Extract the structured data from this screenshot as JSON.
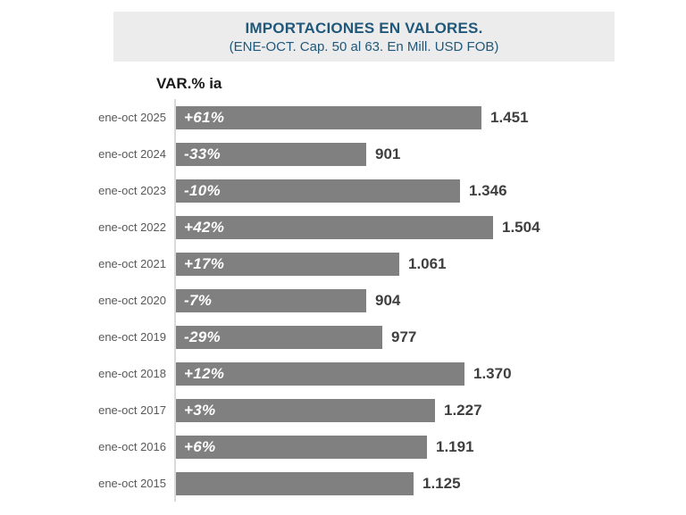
{
  "header": {
    "title": "IMPORTACIONES EN VALORES.",
    "subtitle": "(ENE-OCT. Cap. 50 al 63. En Mill. USD FOB)"
  },
  "axis_note": "VAR.% ia",
  "colors": {
    "title_blue": "#1F587A",
    "bar_gray": "#808080",
    "value_text": "#3F3F3F",
    "category_text": "#595959",
    "header_bg": "#ECECEC",
    "axis_line": "#D9D9D9"
  },
  "chart_data": {
    "type": "bar",
    "orientation": "horizontal",
    "title": "IMPORTACIONES EN VALORES.",
    "subtitle": "(ENE-OCT. Cap. 50 al 63. En Mill. USD FOB)",
    "annotation": "VAR.% ia",
    "categories": [
      "ene-oct 2025",
      "ene-oct 2024",
      "ene-oct 2023",
      "ene-oct 2022",
      "ene-oct 2021",
      "ene-oct 2020",
      "ene-oct 2019",
      "ene-oct 2018",
      "ene-oct 2017",
      "ene-oct 2016",
      "ene-oct 2015"
    ],
    "values": [
      1451,
      901,
      1346,
      1504,
      1061,
      904,
      977,
      1370,
      1227,
      1191,
      1125
    ],
    "value_labels": [
      "1.451",
      "901",
      "1.346",
      "1.504",
      "1.061",
      "904",
      "977",
      "1.370",
      "1.227",
      "1.191",
      "1.125"
    ],
    "var_labels": [
      "+61%",
      "-33%",
      "-10%",
      "+42%",
      "+17%",
      "-7%",
      "-29%",
      "+12%",
      "+3%",
      "+6%",
      ""
    ],
    "xlim": [
      0,
      1600
    ],
    "legend": "none",
    "grid": false,
    "bar_color": "#808080"
  }
}
